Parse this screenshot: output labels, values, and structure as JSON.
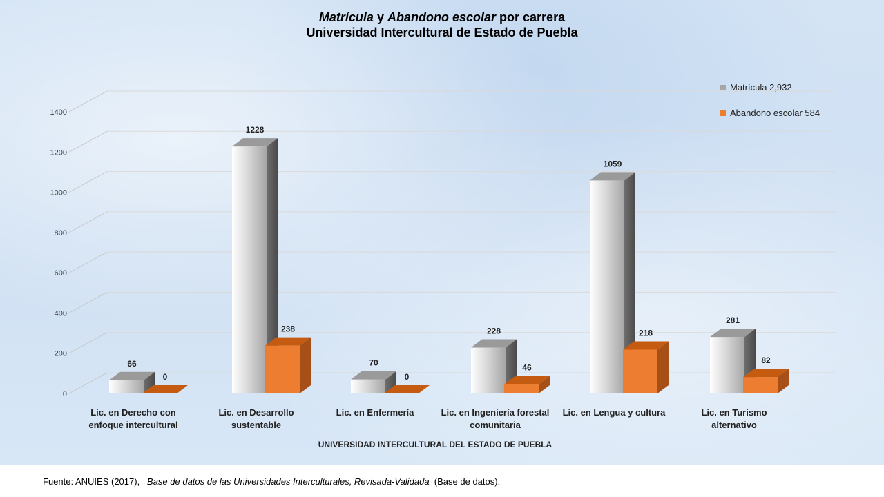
{
  "title": {
    "part1_italic": "Matrícula",
    "part2": "y",
    "part3_italic": "Abandono escolar",
    "part4": "por carrera",
    "line2": "Universidad Intercultural de Estado de Puebla"
  },
  "source": {
    "prefix": "Fuente: ANUIES (2017),",
    "italic": "Base de datos de las Universidades  Interculturales, Revisada-Validada",
    "suffix": "(Base de datos)."
  },
  "chart_data": {
    "type": "bar",
    "title": "Matrícula y Abandono escolar por carrera Universidad Intercultural de Estado de Puebla",
    "xlabel": "UNIVERSIDAD INTERCULTURAL DEL ESTADO DE PUEBLA",
    "ylabel": "",
    "ylim": [
      0,
      1400
    ],
    "yticks": [
      "0",
      "200",
      "400",
      "600",
      "800",
      "1000",
      "1200",
      "1400"
    ],
    "categories": [
      [
        "Lic. en Derecho con",
        "enfoque intercultural"
      ],
      [
        "Lic. en Desarrollo",
        "sustentable"
      ],
      [
        "Lic. en Enfermería"
      ],
      [
        "Lic. en Ingeniería forestal",
        "comunitaria"
      ],
      [
        "Lic. en Lengua y cultura"
      ],
      [
        "Lic. en Turismo",
        "alternativo"
      ]
    ],
    "series": [
      {
        "name": "Matrícula  2,932",
        "values": [
          66,
          1228,
          70,
          228,
          1059,
          281
        ],
        "color": "#bfbfbf"
      },
      {
        "name": "Abandono escolar 584",
        "values": [
          0,
          238,
          0,
          46,
          218,
          82
        ],
        "color": "#ed7d31"
      }
    ],
    "grid": true,
    "legend_position": "top-right",
    "style": "3d-column"
  }
}
